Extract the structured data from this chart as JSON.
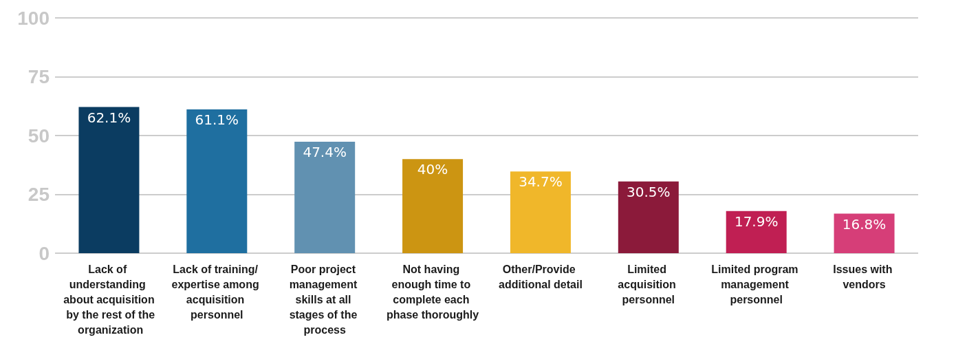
{
  "chart_data": {
    "type": "bar",
    "categories": [
      "Lack of understanding about acquisition by the rest of the organization",
      "Lack of training/ expertise among acquisition personnel",
      "Poor project management skills at all stages of the process",
      "Not having enough time to complete each phase thoroughly",
      "Other/Provide additional detail",
      "Limited acquisition personnel",
      "Limited program management personnel",
      "Issues with vendors"
    ],
    "values": [
      62.1,
      61.1,
      47.4,
      40,
      34.7,
      30.5,
      17.9,
      16.8
    ],
    "value_labels": [
      "62.1%",
      "61.1%",
      "47.4%",
      "40%",
      "34.7%",
      "30.5%",
      "17.9%",
      "16.8%"
    ],
    "colors": [
      "#0b3c61",
      "#1f6fa0",
      "#6191b1",
      "#cc9512",
      "#f0b72a",
      "#8b1a3a",
      "#c01f53",
      "#d63e78"
    ],
    "ylim": [
      0,
      100
    ],
    "yticks": [
      0,
      25,
      50,
      75,
      100
    ],
    "grid": "y"
  }
}
